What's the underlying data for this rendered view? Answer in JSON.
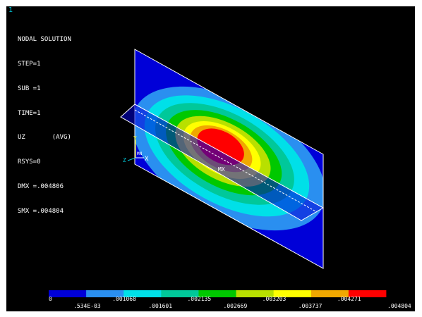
{
  "window_number": "1",
  "info": {
    "title": "NODAL SOLUTION",
    "step": "STEP=1",
    "sub": "SUB =1",
    "time": "TIME=1",
    "component": "UZ       (AVG)",
    "rsys": "RSYS=0",
    "dmx": "DMX =.004806",
    "smx": "SMX =.004804"
  },
  "markers": {
    "max_label": "MX",
    "axis_y": "Y",
    "axis_x": "X",
    "axis_z": "Z",
    "axis_origin": "MN"
  },
  "legend": {
    "colors": [
      "#0000d8",
      "#2a8ff0",
      "#00e0e8",
      "#00c89a",
      "#00c800",
      "#b8e000",
      "#ffff00",
      "#f0a800",
      "#ff0000"
    ],
    "labels_upper": [
      "0",
      ".001068",
      ".002135",
      ".003203",
      ".004271"
    ],
    "labels_lower": [
      ".534E-03",
      ".001601",
      ".002669",
      ".003737",
      ".004804"
    ]
  },
  "contour_colors": {
    "ring1": "#0000d8",
    "ring2": "#2a8ff0",
    "ring3": "#00e0e8",
    "ring4": "#00c89a",
    "ring5": "#00c800",
    "ring6": "#b8e000",
    "ring7": "#ffff00",
    "ring8": "#f0a800",
    "ring9": "#ff0000"
  }
}
